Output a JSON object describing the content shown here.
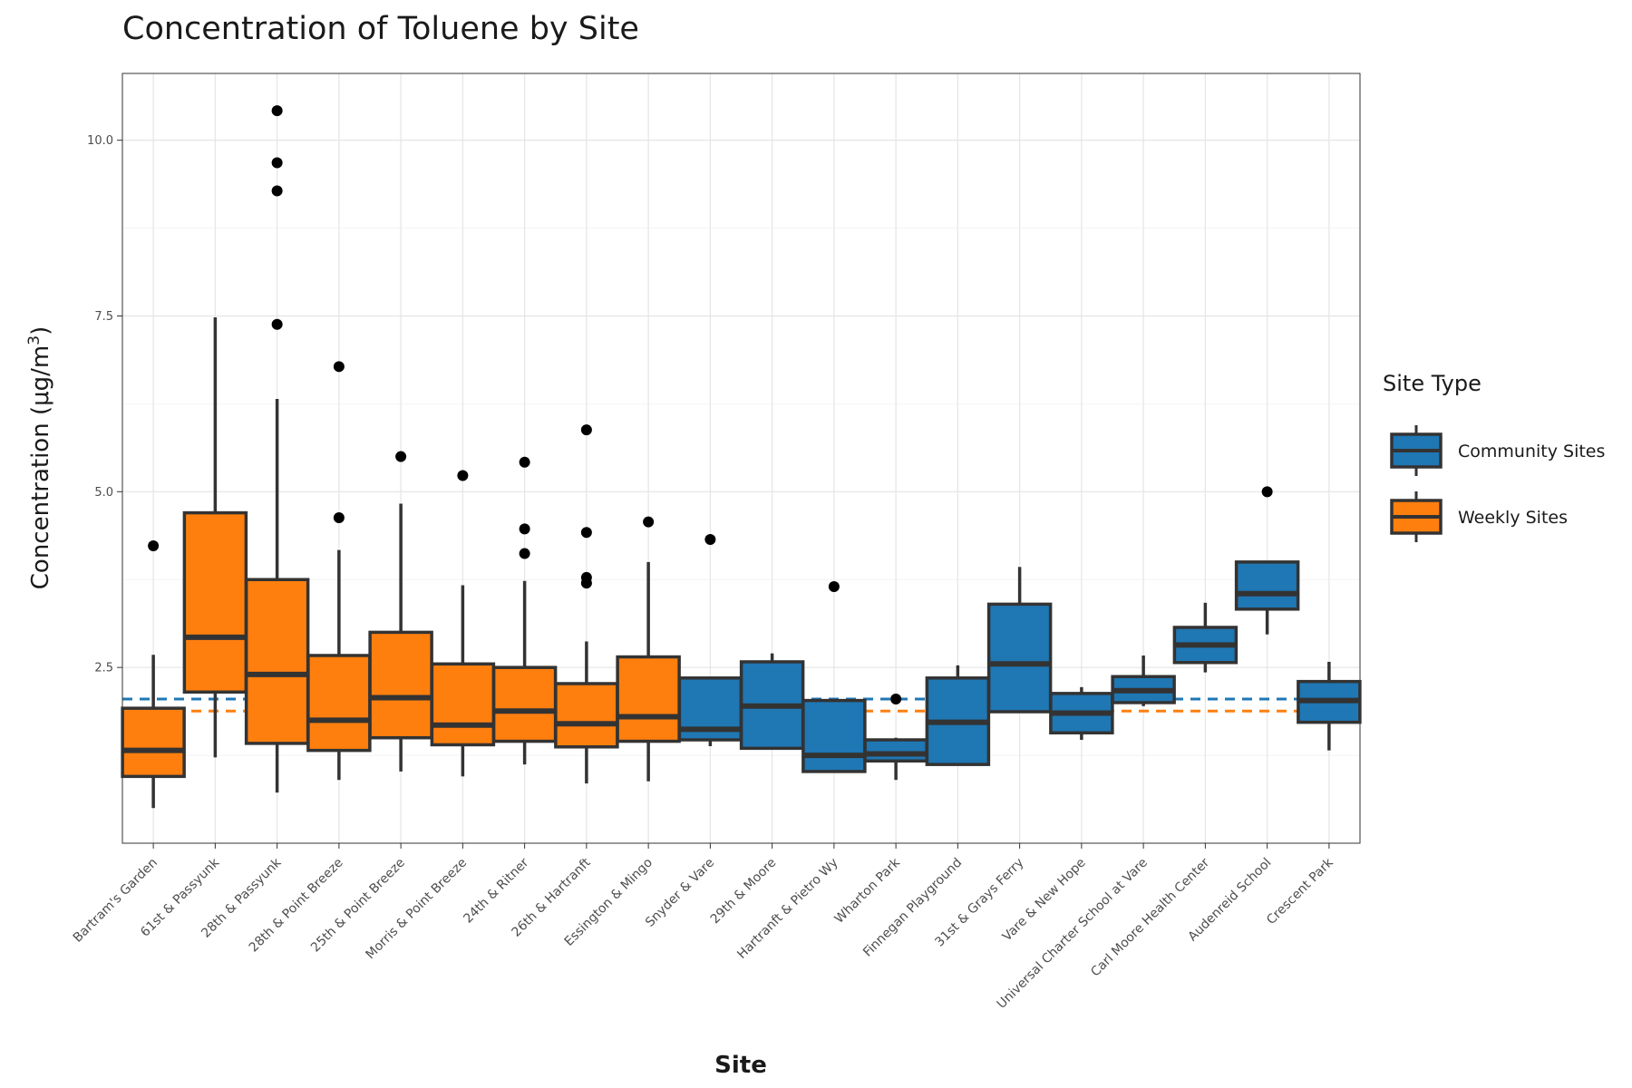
{
  "chart_data": {
    "type": "box",
    "title": "Concentration of Toluene by Site",
    "xlabel": "Site",
    "ylabel": "Concentration (μg/m³)",
    "ylabel_parts": [
      "Concentration (μg/m",
      "3",
      ")"
    ],
    "ylim": [
      0,
      10.95
    ],
    "yticks": [
      "2.5",
      "5.0",
      "7.5",
      "10.0"
    ],
    "grid": true,
    "legend": {
      "title": "Site Type",
      "position": "right",
      "entries": [
        {
          "label": "Community Sites",
          "color": "#1f77b4"
        },
        {
          "label": "Weekly Sites",
          "color": "#ff7f0e"
        }
      ]
    },
    "reference_lines": [
      {
        "group": "Community Sites",
        "y": 2.05,
        "color": "#1f77b4",
        "style": "dashed"
      },
      {
        "group": "Weekly Sites",
        "y": 1.88,
        "color": "#ff7f0e",
        "style": "dashed"
      }
    ],
    "categories": [
      "Bartram's Garden",
      "61st & Passyunk",
      "28th & Passyunk",
      "28th & Point Breeze",
      "25th & Point Breeze",
      "Morris & Point Breeze",
      "24th & Ritner",
      "26th & Hartranft",
      "Essington & Mingo",
      "Snyder & Vare",
      "29th & Moore",
      "Hartranft & Pietro Wy",
      "Wharton Park",
      "Finnegan Playground",
      "31st & Grays Ferry",
      "Vare & New Hope",
      "Universal Charter School at Vare",
      "Carl Moore Health Center",
      "Audenreid School",
      "Crescent Park"
    ],
    "boxes": [
      {
        "site": "Bartram's Garden",
        "group": "Weekly Sites",
        "whisker_low": 0.5,
        "q1": 0.95,
        "median": 1.32,
        "q3": 1.92,
        "whisker_high": 2.68,
        "outliers": [
          4.23
        ]
      },
      {
        "site": "61st & Passyunk",
        "group": "Weekly Sites",
        "whisker_low": 1.22,
        "q1": 2.15,
        "median": 2.93,
        "q3": 4.7,
        "whisker_high": 7.48,
        "outliers": []
      },
      {
        "site": "28th & Passyunk",
        "group": "Weekly Sites",
        "whisker_low": 0.72,
        "q1": 1.42,
        "median": 2.4,
        "q3": 3.75,
        "whisker_high": 6.32,
        "outliers": [
          7.38,
          9.28,
          9.68,
          10.42
        ]
      },
      {
        "site": "28th & Point Breeze",
        "group": "Weekly Sites",
        "whisker_low": 0.9,
        "q1": 1.32,
        "median": 1.75,
        "q3": 2.67,
        "whisker_high": 4.17,
        "outliers": [
          4.63,
          6.78
        ]
      },
      {
        "site": "25th & Point Breeze",
        "group": "Weekly Sites",
        "whisker_low": 1.02,
        "q1": 1.5,
        "median": 2.07,
        "q3": 3.0,
        "whisker_high": 4.83,
        "outliers": [
          5.5
        ]
      },
      {
        "site": "Morris & Point Breeze",
        "group": "Weekly Sites",
        "whisker_low": 0.95,
        "q1": 1.4,
        "median": 1.68,
        "q3": 2.55,
        "whisker_high": 3.67,
        "outliers": [
          5.23
        ]
      },
      {
        "site": "24th & Ritner",
        "group": "Weekly Sites",
        "whisker_low": 1.12,
        "q1": 1.45,
        "median": 1.88,
        "q3": 2.5,
        "whisker_high": 3.73,
        "outliers": [
          4.12,
          4.47,
          5.42
        ]
      },
      {
        "site": "26th & Hartranft",
        "group": "Weekly Sites",
        "whisker_low": 0.85,
        "q1": 1.37,
        "median": 1.7,
        "q3": 2.27,
        "whisker_high": 2.87,
        "outliers": [
          3.7,
          3.78,
          4.42,
          5.88
        ]
      },
      {
        "site": "Essington & Mingo",
        "group": "Weekly Sites",
        "whisker_low": 0.88,
        "q1": 1.45,
        "median": 1.8,
        "q3": 2.65,
        "whisker_high": 4.0,
        "outliers": [
          4.57
        ]
      },
      {
        "site": "Snyder & Vare",
        "group": "Community Sites",
        "whisker_low": 1.38,
        "q1": 1.47,
        "median": 1.62,
        "q3": 2.35,
        "whisker_high": 2.35,
        "outliers": [
          4.32
        ]
      },
      {
        "site": "29th & Moore",
        "group": "Community Sites",
        "whisker_low": 1.35,
        "q1": 1.35,
        "median": 1.95,
        "q3": 2.58,
        "whisker_high": 2.7,
        "outliers": []
      },
      {
        "site": "Hartranft & Pietro Wy",
        "group": "Community Sites",
        "whisker_low": 1.02,
        "q1": 1.02,
        "median": 1.25,
        "q3": 2.03,
        "whisker_high": 2.05,
        "outliers": [
          3.65
        ]
      },
      {
        "site": "Wharton Park",
        "group": "Community Sites",
        "whisker_low": 0.9,
        "q1": 1.17,
        "median": 1.27,
        "q3": 1.47,
        "whisker_high": 1.5,
        "outliers": [
          2.05
        ]
      },
      {
        "site": "Finnegan Playground",
        "group": "Community Sites",
        "whisker_low": 1.12,
        "q1": 1.12,
        "median": 1.72,
        "q3": 2.35,
        "whisker_high": 2.53,
        "outliers": []
      },
      {
        "site": "31st & Grays Ferry",
        "group": "Community Sites",
        "whisker_low": 1.87,
        "q1": 1.87,
        "median": 2.55,
        "q3": 3.4,
        "whisker_high": 3.93,
        "outliers": []
      },
      {
        "site": "Vare & New Hope",
        "group": "Community Sites",
        "whisker_low": 1.47,
        "q1": 1.57,
        "median": 1.85,
        "q3": 2.13,
        "whisker_high": 2.22,
        "outliers": []
      },
      {
        "site": "Universal Charter School at Vare",
        "group": "Community Sites",
        "whisker_low": 1.95,
        "q1": 2.0,
        "median": 2.17,
        "q3": 2.37,
        "whisker_high": 2.67,
        "outliers": []
      },
      {
        "site": "Carl Moore Health Center",
        "group": "Community Sites",
        "whisker_low": 2.43,
        "q1": 2.57,
        "median": 2.82,
        "q3": 3.07,
        "whisker_high": 3.42,
        "outliers": []
      },
      {
        "site": "Audenreid School",
        "group": "Community Sites",
        "whisker_low": 2.97,
        "q1": 3.33,
        "median": 3.55,
        "q3": 4.0,
        "whisker_high": 4.0,
        "outliers": [
          5.0
        ]
      },
      {
        "site": "Crescent Park",
        "group": "Community Sites",
        "whisker_low": 1.32,
        "q1": 1.72,
        "median": 2.03,
        "q3": 2.3,
        "whisker_high": 2.58,
        "outliers": []
      }
    ]
  }
}
